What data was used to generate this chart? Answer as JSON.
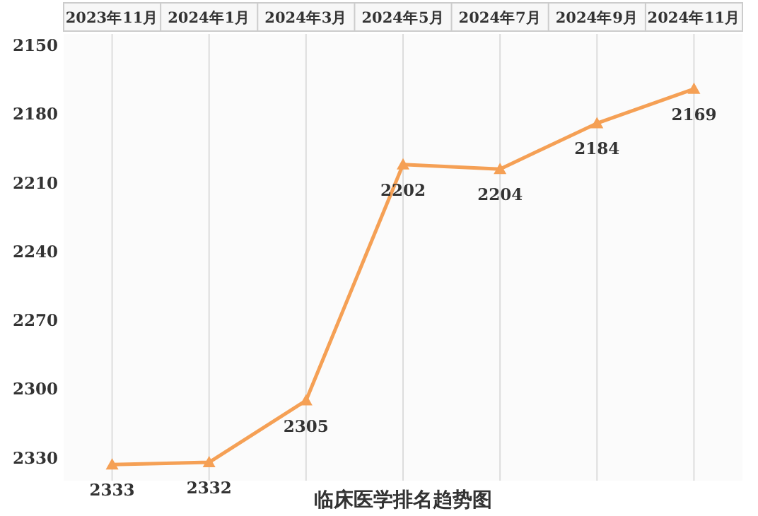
{
  "chart_data": {
    "type": "line",
    "title": "临床医学排名趋势图",
    "categories": [
      "2023年11月",
      "2024年1月",
      "2024年3月",
      "2024年5月",
      "2024年7月",
      "2024年9月",
      "2024年11月"
    ],
    "values": [
      2333,
      2332,
      2305,
      2202,
      2204,
      2184,
      2169
    ],
    "color": "#f5a055",
    "marker": "triangle",
    "data_labels": true,
    "grid": "x",
    "ylim": [
      2340,
      2145
    ],
    "yticks": [
      2150,
      2180,
      2210,
      2240,
      2270,
      2300,
      2330
    ]
  }
}
